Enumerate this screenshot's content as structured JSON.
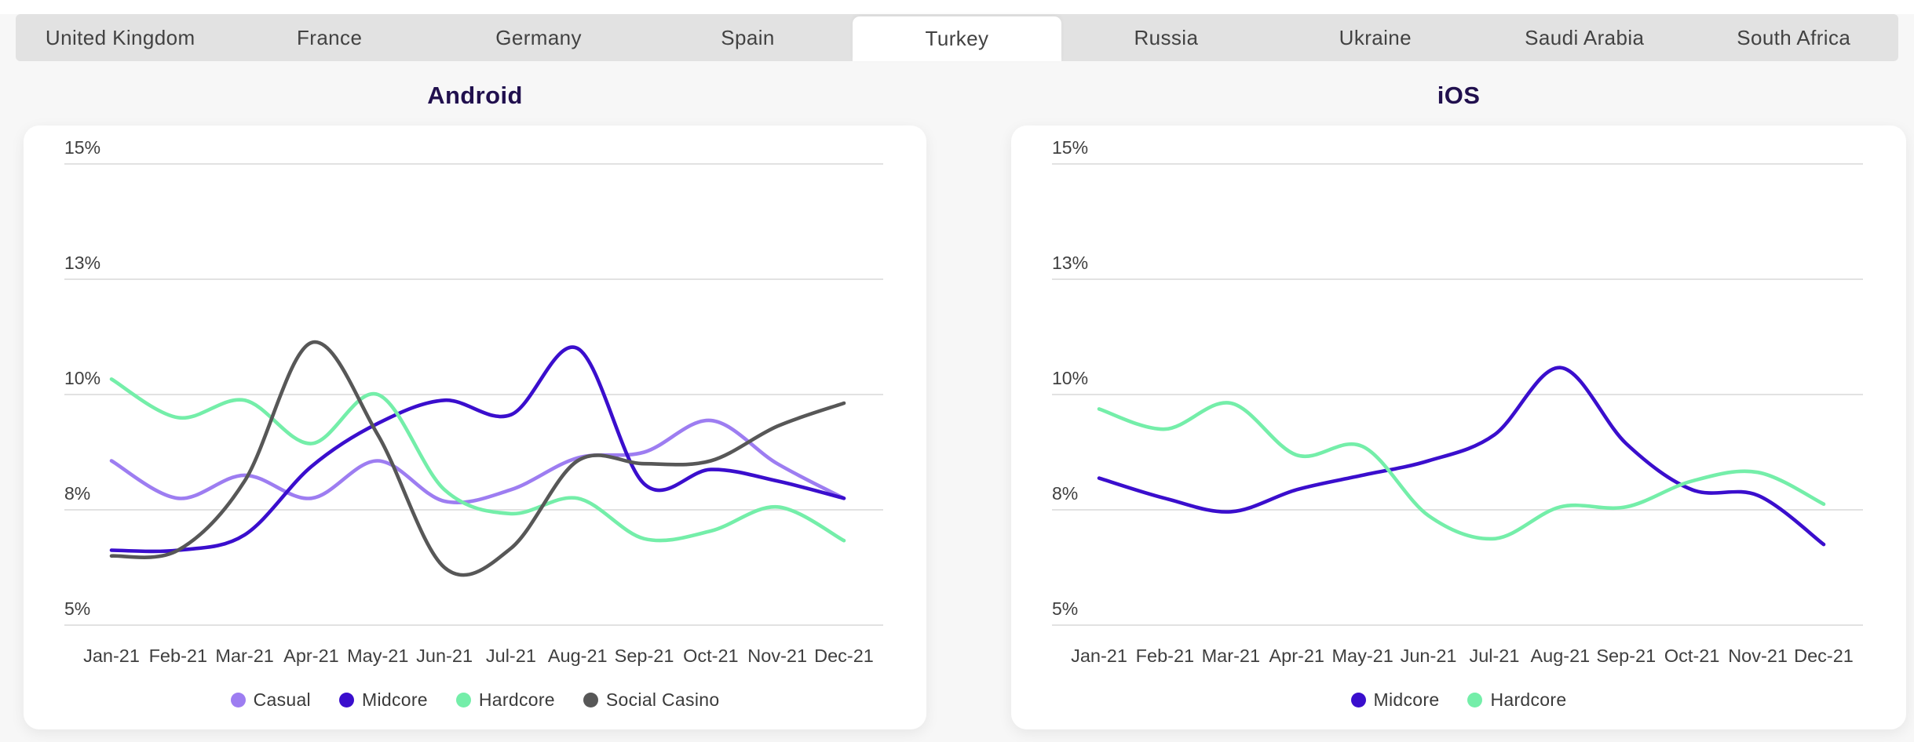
{
  "tabs": {
    "items": [
      "United Kingdom",
      "France",
      "Germany",
      "Spain",
      "Turkey",
      "Russia",
      "Ukraine",
      "Saudi Arabia",
      "South Africa"
    ],
    "active": "Turkey"
  },
  "colors": {
    "casual": "#9d7df1",
    "midcore": "#3a0ecd",
    "hardcore": "#74eea9",
    "social_casino": "#575757",
    "gridline": "#e2e2e2",
    "axis_text": "#3f3f3f",
    "title_text": "#21104e",
    "tabbar_bg": "#e2e2e2",
    "active_tab_bg": "#ffffff"
  },
  "chart_data": [
    {
      "type": "line",
      "title": "Android",
      "x": [
        "Jan-21",
        "Feb-21",
        "Mar-21",
        "Apr-21",
        "May-21",
        "Jun-21",
        "Jul-21",
        "Aug-21",
        "Sep-21",
        "Oct-21",
        "Nov-21",
        "Dec-21"
      ],
      "y_axis": {
        "tick_labels": [
          "15%",
          "13%",
          "10%",
          "8%",
          "5%"
        ],
        "tick_values": [
          15,
          13,
          10,
          8,
          5
        ],
        "range": [
          5,
          15
        ],
        "grid": true,
        "unit": "%"
      },
      "legend_position": "bottom",
      "series": [
        {
          "name": "Casual",
          "color": "#9d7df1",
          "values": [
            8.85,
            8.2,
            8.6,
            8.2,
            8.85,
            8.15,
            8.35,
            8.9,
            9.0,
            9.55,
            8.8,
            8.2
          ]
        },
        {
          "name": "Midcore",
          "color": "#3a0ecd",
          "values": [
            6.95,
            6.95,
            7.35,
            8.75,
            9.5,
            9.9,
            9.65,
            11.2,
            8.45,
            8.7,
            8.5,
            8.2
          ]
        },
        {
          "name": "Hardcore",
          "color": "#74eea9",
          "values": [
            10.4,
            9.6,
            9.9,
            9.15,
            10.0,
            8.35,
            7.9,
            8.2,
            7.25,
            7.45,
            8.05,
            7.2
          ]
        },
        {
          "name": "Social Casino",
          "color": "#575757",
          "values": [
            6.8,
            6.95,
            8.5,
            11.35,
            9.3,
            6.5,
            7.0,
            8.85,
            8.8,
            8.85,
            9.45,
            9.85
          ]
        }
      ]
    },
    {
      "type": "line",
      "title": "iOS",
      "x": [
        "Jan-21",
        "Feb-21",
        "Mar-21",
        "Apr-21",
        "May-21",
        "Jun-21",
        "Jul-21",
        "Aug-21",
        "Sep-21",
        "Oct-21",
        "Nov-21",
        "Dec-21"
      ],
      "y_axis": {
        "tick_labels": [
          "15%",
          "13%",
          "10%",
          "8%",
          "5%"
        ],
        "tick_values": [
          15,
          13,
          10,
          8,
          5
        ],
        "range": [
          5,
          15
        ],
        "grid": true,
        "unit": "%"
      },
      "legend_position": "bottom",
      "series": [
        {
          "name": "Midcore",
          "color": "#3a0ecd",
          "values": [
            8.55,
            8.2,
            7.95,
            8.35,
            8.6,
            8.85,
            9.3,
            10.7,
            9.15,
            8.35,
            8.25,
            7.1
          ]
        },
        {
          "name": "Hardcore",
          "color": "#74eea9",
          "values": [
            9.75,
            9.4,
            9.85,
            8.95,
            9.1,
            7.85,
            7.25,
            8.05,
            8.05,
            8.5,
            8.65,
            8.1
          ]
        }
      ]
    }
  ]
}
